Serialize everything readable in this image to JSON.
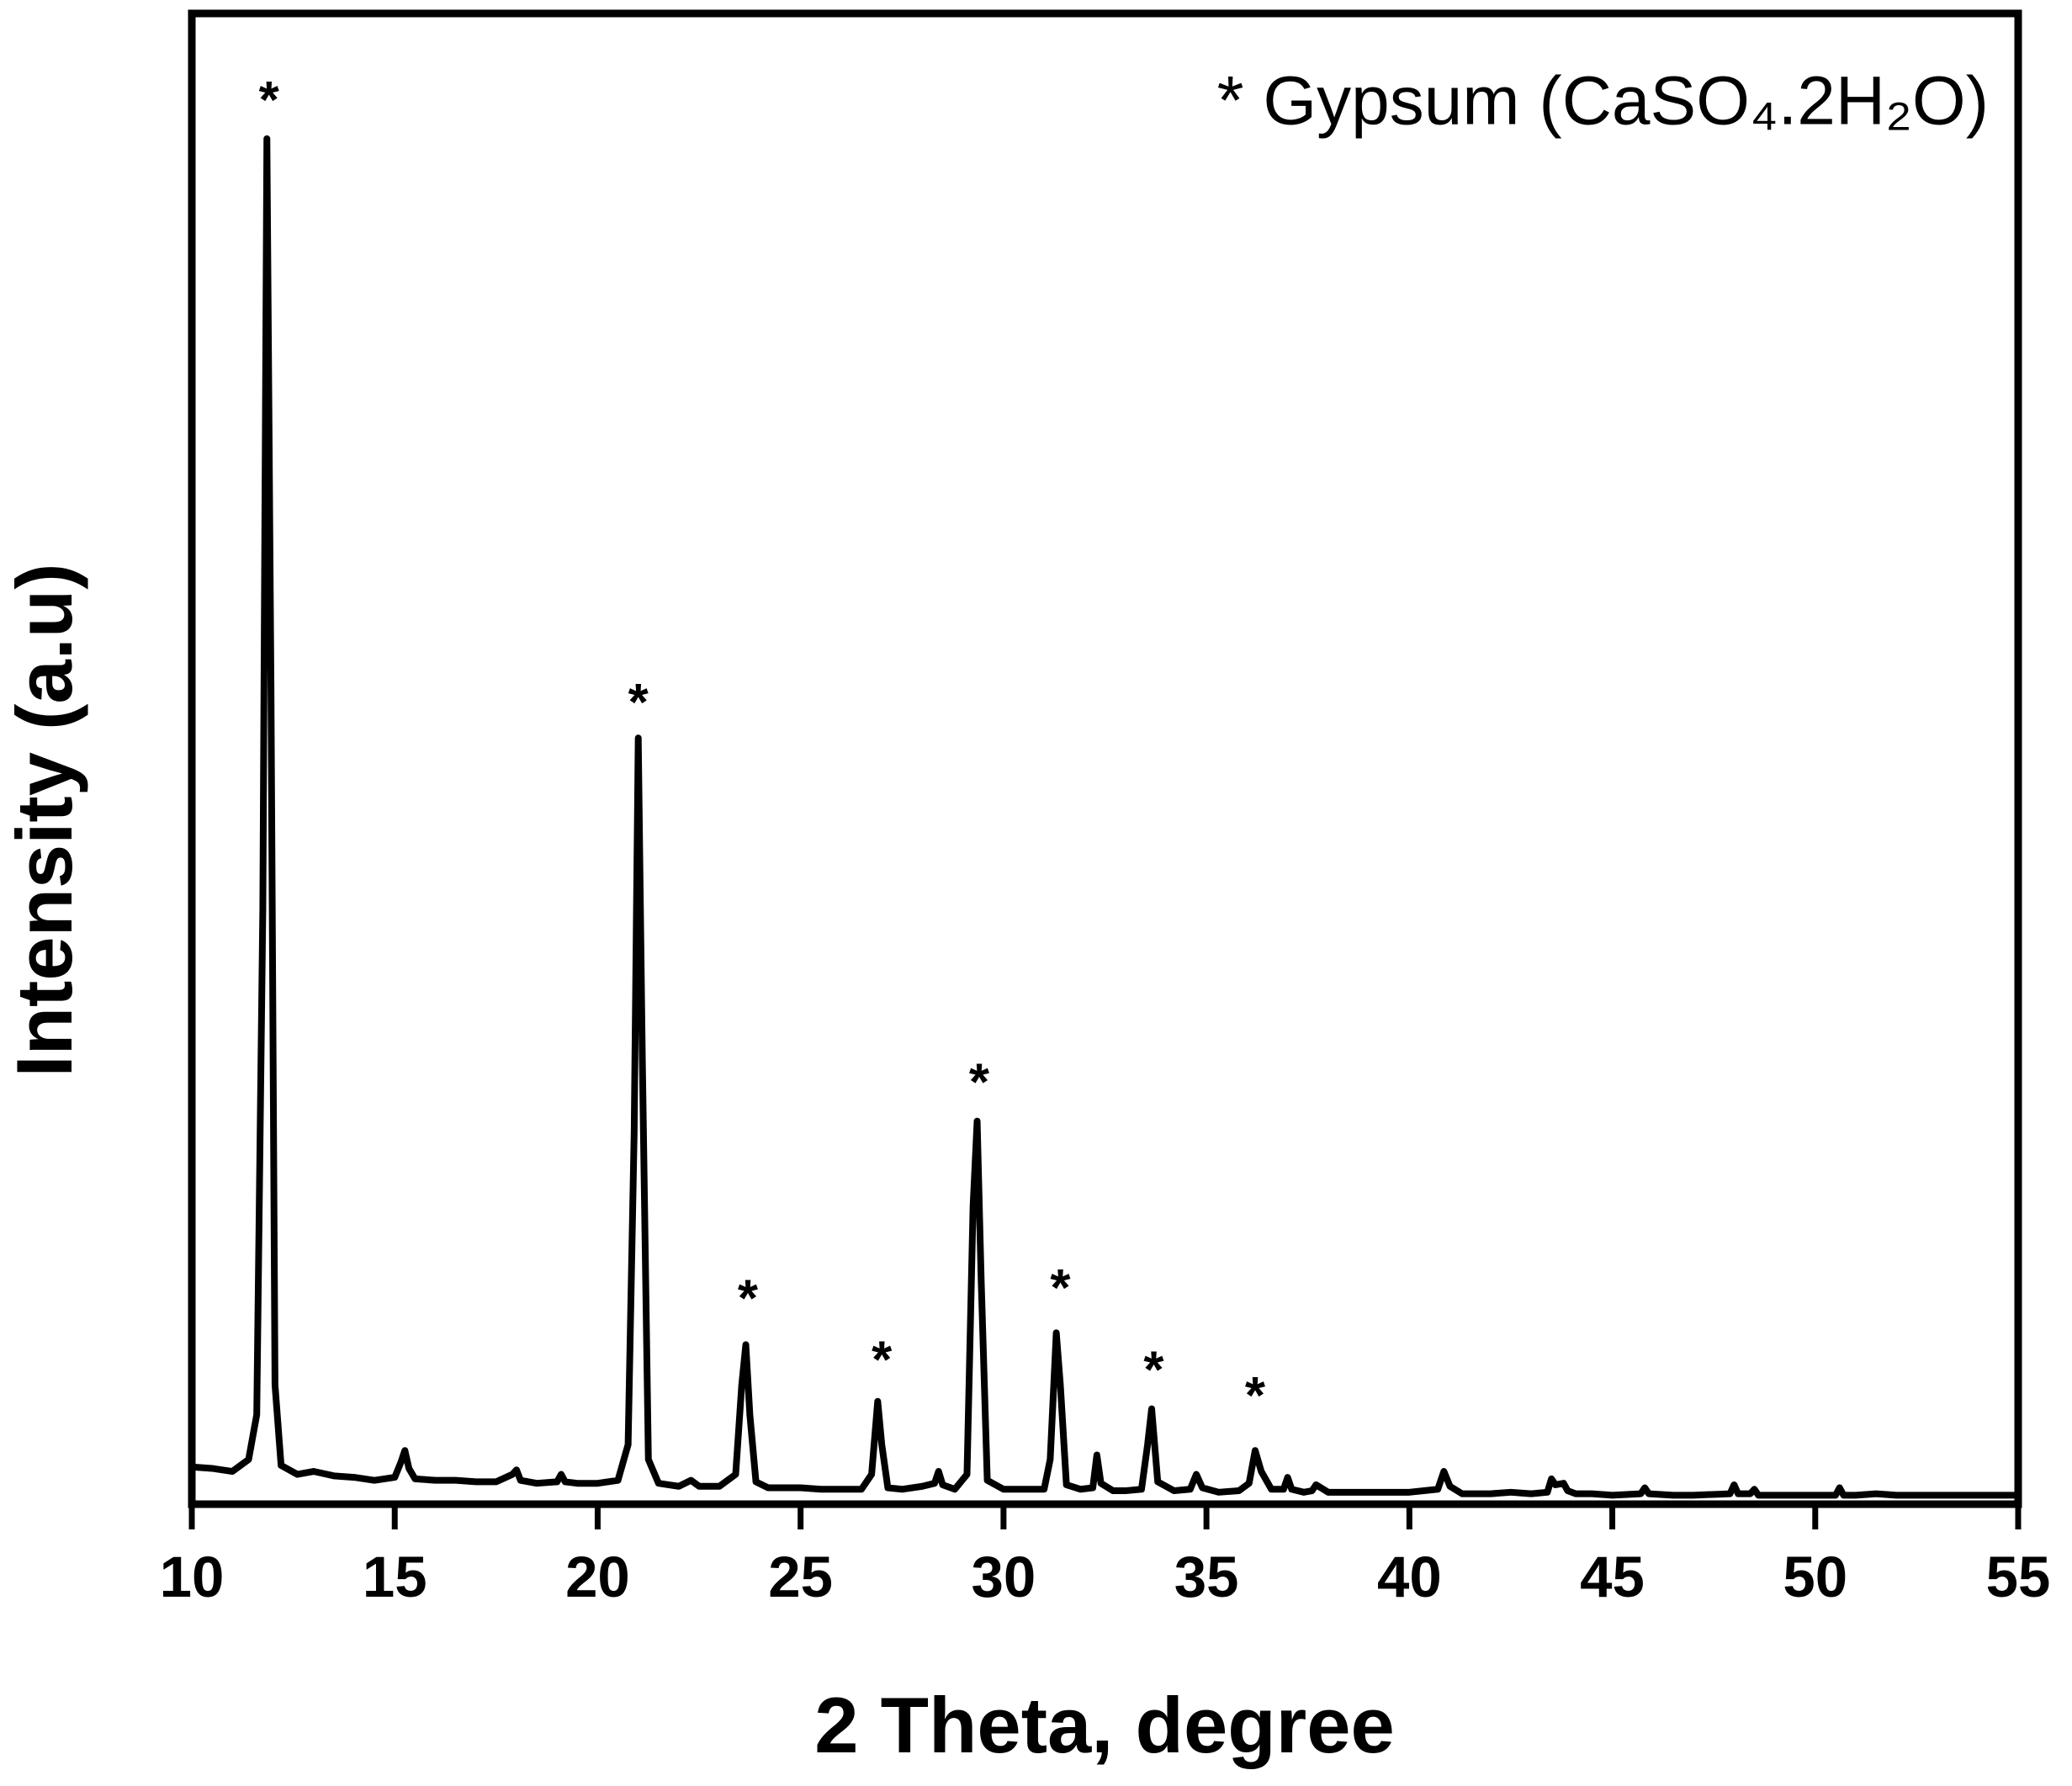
{
  "chart_data": {
    "type": "line",
    "x_label": "2 Theta, degree",
    "y_label": "Intensity (a.u)",
    "legend_text": "* Gypsum (CaSO₄.2H₂O)",
    "xlim": [
      10,
      55
    ],
    "xticks": [
      10,
      15,
      20,
      25,
      30,
      35,
      40,
      45,
      50,
      55
    ],
    "ylim": [
      0,
      100
    ],
    "x": [
      10,
      10.5,
      11,
      11.4,
      11.6,
      11.75,
      11.85,
      11.95,
      12.05,
      12.2,
      12.6,
      13,
      13.5,
      14,
      14.5,
      15,
      15.15,
      15.25,
      15.35,
      15.5,
      16,
      16.5,
      17,
      17.5,
      17.9,
      18,
      18.1,
      18.5,
      19,
      19.1,
      19.2,
      19.5,
      20,
      20.5,
      20.75,
      20.9,
      21.0,
      21.1,
      21.25,
      21.5,
      22,
      22.3,
      22.5,
      23,
      23.4,
      23.55,
      23.65,
      23.75,
      23.9,
      24.2,
      24.5,
      25,
      25.5,
      26,
      26.5,
      26.75,
      26.9,
      27.0,
      27.15,
      27.5,
      28,
      28.3,
      28.4,
      28.5,
      28.8,
      29.1,
      29.25,
      29.35,
      29.45,
      29.6,
      30,
      30.5,
      31,
      31.15,
      31.3,
      31.4,
      31.55,
      31.9,
      32.2,
      32.3,
      32.4,
      32.7,
      33,
      33.4,
      33.55,
      33.65,
      33.8,
      34.2,
      34.6,
      34.75,
      34.9,
      35.3,
      35.8,
      36.05,
      36.2,
      36.35,
      36.6,
      36.9,
      37.0,
      37.1,
      37.4,
      37.6,
      37.7,
      38,
      39,
      40,
      40.7,
      40.85,
      41.0,
      41.3,
      42,
      42.5,
      43,
      43.4,
      43.5,
      43.6,
      43.8,
      43.9,
      44.1,
      44.5,
      45,
      45.7,
      45.8,
      45.9,
      46.5,
      47,
      47.9,
      48.0,
      48.1,
      48.4,
      48.5,
      48.6,
      49,
      50,
      50.5,
      50.6,
      50.7,
      51,
      51.5,
      52,
      53,
      54,
      55
    ],
    "series": [
      {
        "color": "#000000",
        "values": [
          2.5,
          2.4,
          2.2,
          3.0,
          6,
          40,
          91.6,
          55,
          8,
          2.6,
          2.0,
          2.2,
          1.9,
          1.8,
          1.6,
          1.8,
          2.8,
          3.6,
          2.4,
          1.7,
          1.6,
          1.6,
          1.5,
          1.5,
          2.0,
          2.3,
          1.6,
          1.4,
          1.5,
          2.0,
          1.5,
          1.4,
          1.4,
          1.6,
          4,
          25,
          51.4,
          30,
          3,
          1.4,
          1.2,
          1.6,
          1.2,
          1.2,
          2,
          8,
          10.7,
          6,
          1.5,
          1.1,
          1.1,
          1.1,
          1.0,
          1.0,
          1.0,
          2,
          6.9,
          4,
          1.1,
          1.0,
          1.2,
          1.4,
          2.2,
          1.3,
          1.0,
          2,
          20,
          25.7,
          15,
          1.6,
          1.0,
          1.0,
          1.0,
          3,
          11.5,
          8,
          1.3,
          1.0,
          1.1,
          3.3,
          1.4,
          0.9,
          0.9,
          1.0,
          4,
          6.4,
          1.5,
          0.9,
          1.0,
          2.0,
          1.1,
          0.8,
          0.9,
          1.4,
          3.6,
          2.2,
          1.0,
          1.0,
          1.8,
          1.0,
          0.8,
          0.9,
          1.3,
          0.8,
          0.8,
          0.8,
          1.0,
          2.2,
          1.2,
          0.7,
          0.7,
          0.8,
          0.7,
          0.8,
          1.7,
          1.3,
          1.4,
          0.9,
          0.7,
          0.7,
          0.6,
          0.7,
          1.1,
          0.7,
          0.6,
          0.6,
          0.7,
          1.3,
          0.7,
          0.7,
          1.0,
          0.6,
          0.6,
          0.6,
          0.6,
          1.1,
          0.6,
          0.6,
          0.7,
          0.6,
          0.6,
          0.6,
          0.6
        ]
      }
    ],
    "annotations": [
      {
        "text": "*",
        "x": 11.9,
        "y": 94.7
      },
      {
        "text": "*",
        "x": 21.0,
        "y": 54.3
      },
      {
        "text": "*",
        "x": 23.7,
        "y": 14.3
      },
      {
        "text": "*",
        "x": 27.0,
        "y": 10.2
      },
      {
        "text": "*",
        "x": 29.4,
        "y": 28.8
      },
      {
        "text": "*",
        "x": 31.4,
        "y": 15.0
      },
      {
        "text": "*",
        "x": 33.7,
        "y": 9.5
      },
      {
        "text": "*",
        "x": 36.2,
        "y": 7.8
      }
    ]
  }
}
